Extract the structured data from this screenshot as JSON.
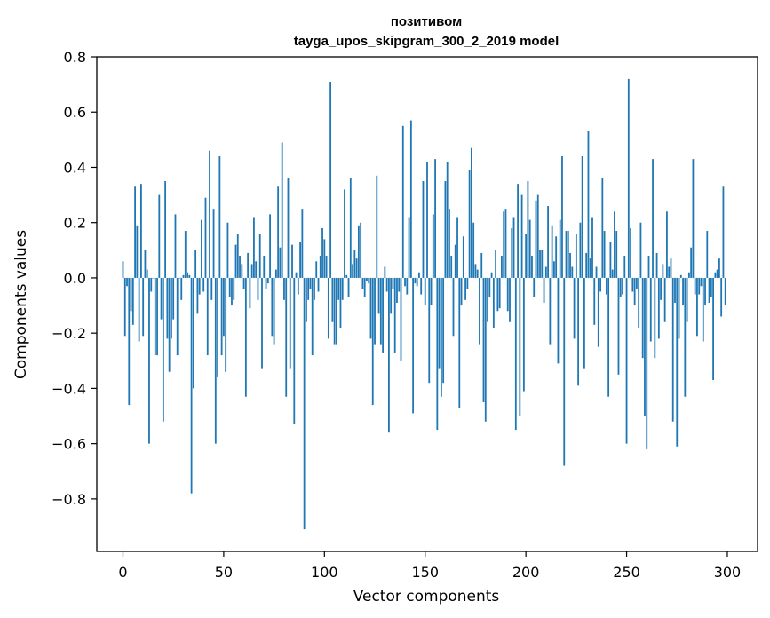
{
  "chart_data": {
    "type": "bar",
    "title_lines": [
      "позитивом",
      "tayga_upos_skipgram_300_2_2019 model"
    ],
    "xlabel": "Vector components",
    "ylabel": "Components values",
    "xlim": [
      -13,
      315
    ],
    "ylim": [
      -0.99,
      0.8
    ],
    "x_ticks": [
      0,
      50,
      100,
      150,
      200,
      250,
      300
    ],
    "y_ticks": [
      -0.8,
      -0.6,
      -0.4,
      -0.2,
      0.0,
      0.2,
      0.4,
      0.6,
      0.8
    ],
    "y_tick_labels": [
      "−0.8",
      "−0.6",
      "−0.4",
      "−0.2",
      "0.0",
      "0.2",
      "0.4",
      "0.6",
      "0.8"
    ],
    "bar_color": "#1f77b4",
    "values": [
      0.06,
      -0.21,
      -0.03,
      -0.46,
      -0.12,
      -0.17,
      0.33,
      0.19,
      -0.23,
      0.34,
      -0.21,
      0.1,
      0.03,
      -0.6,
      -0.05,
      0.0,
      -0.28,
      -0.28,
      0.3,
      -0.15,
      -0.52,
      0.35,
      -0.22,
      -0.34,
      -0.22,
      -0.15,
      0.23,
      -0.28,
      0.0,
      -0.08,
      0.01,
      0.17,
      0.02,
      0.01,
      -0.78,
      -0.4,
      0.1,
      -0.13,
      -0.06,
      0.21,
      -0.05,
      0.29,
      -0.28,
      0.46,
      -0.08,
      0.25,
      -0.6,
      -0.36,
      0.44,
      -0.28,
      -0.21,
      -0.34,
      0.2,
      -0.07,
      -0.1,
      -0.08,
      0.12,
      0.16,
      0.08,
      0.05,
      -0.04,
      -0.43,
      0.09,
      -0.11,
      0.05,
      0.22,
      0.06,
      -0.08,
      0.16,
      -0.33,
      0.08,
      -0.04,
      -0.02,
      0.23,
      -0.21,
      -0.24,
      0.03,
      0.33,
      0.11,
      0.49,
      -0.08,
      -0.43,
      0.36,
      -0.33,
      0.12,
      -0.53,
      0.02,
      -0.06,
      0.13,
      0.25,
      -0.91,
      -0.16,
      -0.08,
      -0.04,
      -0.28,
      -0.08,
      0.06,
      -0.05,
      0.08,
      0.18,
      0.14,
      0.08,
      -0.22,
      0.71,
      -0.16,
      -0.24,
      -0.24,
      -0.08,
      -0.18,
      -0.08,
      0.32,
      0.01,
      -0.07,
      0.36,
      0.05,
      0.1,
      0.07,
      0.19,
      0.2,
      -0.04,
      -0.07,
      -0.01,
      -0.02,
      -0.22,
      -0.46,
      -0.24,
      0.37,
      -0.13,
      -0.24,
      -0.27,
      0.04,
      -0.05,
      -0.56,
      -0.13,
      -0.04,
      -0.27,
      -0.09,
      -0.05,
      -0.3,
      0.55,
      -0.03,
      -0.06,
      0.22,
      0.57,
      -0.49,
      -0.02,
      -0.03,
      0.02,
      -0.06,
      0.35,
      -0.1,
      0.42,
      -0.38,
      -0.1,
      0.23,
      0.43,
      -0.55,
      -0.33,
      -0.43,
      -0.38,
      0.35,
      0.42,
      0.25,
      0.08,
      -0.21,
      0.12,
      0.22,
      -0.47,
      -0.1,
      0.15,
      -0.08,
      -0.04,
      0.39,
      0.47,
      0.2,
      0.05,
      0.03,
      -0.24,
      0.09,
      -0.45,
      -0.52,
      -0.16,
      -0.07,
      0.02,
      -0.18,
      0.1,
      -0.12,
      -0.11,
      0.08,
      0.24,
      0.25,
      -0.12,
      -0.16,
      0.18,
      0.22,
      -0.55,
      0.34,
      -0.5,
      0.3,
      -0.41,
      0.16,
      0.35,
      0.21,
      0.08,
      -0.07,
      0.28,
      0.3,
      0.1,
      0.1,
      -0.09,
      0.04,
      0.26,
      -0.24,
      0.19,
      0.06,
      0.15,
      -0.31,
      0.21,
      0.44,
      -0.68,
      0.17,
      0.17,
      0.09,
      0.04,
      -0.22,
      0.16,
      -0.39,
      0.2,
      0.44,
      -0.33,
      0.09,
      0.53,
      0.07,
      0.22,
      -0.17,
      0.04,
      -0.25,
      -0.05,
      0.36,
      0.17,
      -0.06,
      -0.43,
      0.13,
      0.03,
      0.24,
      0.17,
      -0.35,
      -0.07,
      -0.06,
      0.08,
      -0.6,
      0.72,
      0.18,
      -0.05,
      -0.1,
      -0.04,
      -0.18,
      0.2,
      -0.29,
      -0.5,
      -0.62,
      0.08,
      -0.23,
      0.43,
      -0.29,
      0.09,
      -0.22,
      -0.08,
      0.05,
      -0.16,
      0.24,
      0.04,
      0.07,
      -0.52,
      -0.09,
      -0.61,
      -0.22,
      0.01,
      -0.1,
      -0.43,
      -0.16,
      0.02,
      0.11,
      0.43,
      -0.06,
      -0.21,
      -0.06,
      -0.03,
      -0.23,
      -0.1,
      0.17,
      -0.09,
      -0.07,
      -0.37,
      0.02,
      0.03,
      0.07,
      -0.14,
      0.33,
      -0.1
    ]
  }
}
